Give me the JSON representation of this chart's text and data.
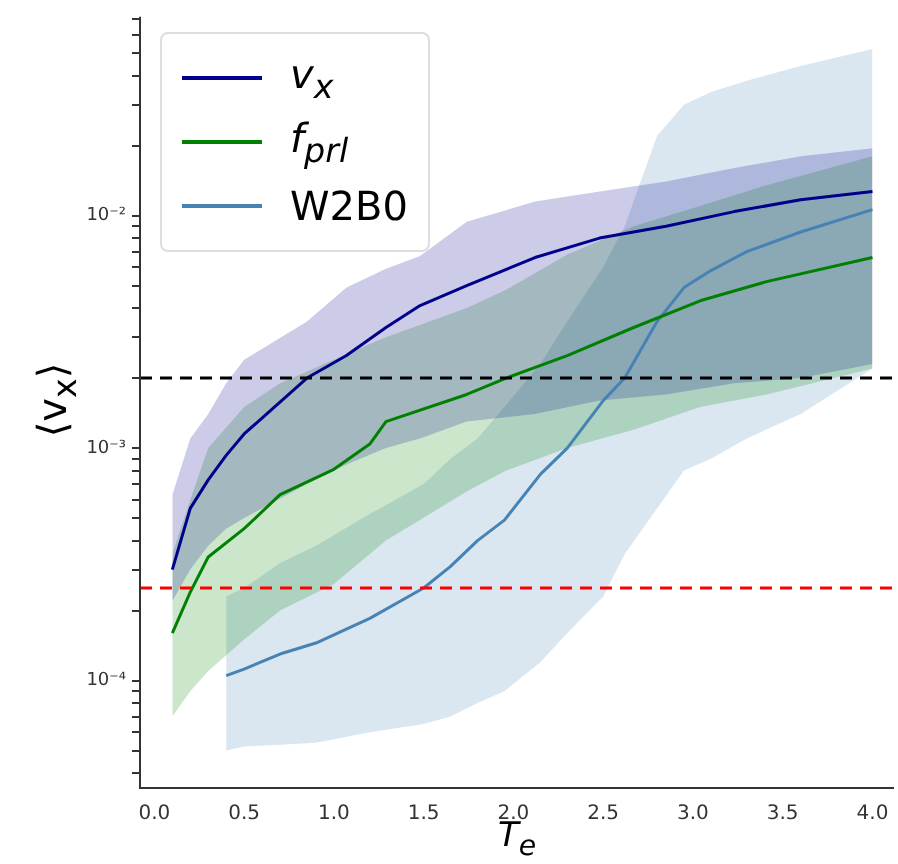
{
  "chart_data": {
    "type": "line",
    "xlabel": "T$_{e}$",
    "ylabel": "⟨v$_{x}$⟩",
    "log": "y",
    "legend": "top left",
    "xlim": [
      -0.08,
      4.12
    ],
    "ylim": [
      3.45e-05,
      0.0716
    ],
    "xticks": [
      {
        "value": 0,
        "label": "0.0"
      },
      {
        "value": 0.5,
        "label": "0.5"
      },
      {
        "value": 1,
        "label": "1.0"
      },
      {
        "value": 1.5,
        "label": "1.5"
      },
      {
        "value": 2,
        "label": "2.0"
      },
      {
        "value": 2.5,
        "label": "2.5"
      },
      {
        "value": 3,
        "label": "3.0"
      },
      {
        "value": 3.5,
        "label": "3.5"
      },
      {
        "value": 4,
        "label": "4.0"
      }
    ],
    "yticks": [
      {
        "value": 4e-05,
        "label": null
      },
      {
        "value": 5e-05,
        "label": null
      },
      {
        "value": 6e-05,
        "label": null
      },
      {
        "value": 7e-05,
        "label": null
      },
      {
        "value": 8e-05,
        "label": null
      },
      {
        "value": 9e-05,
        "label": null
      },
      {
        "value": 0.0001,
        "label": "10⁻⁴"
      },
      {
        "value": 0.0002,
        "label": null
      },
      {
        "value": 0.0003,
        "label": null
      },
      {
        "value": 0.0004,
        "label": null
      },
      {
        "value": 0.0005,
        "label": null
      },
      {
        "value": 0.0006,
        "label": null
      },
      {
        "value": 0.0007,
        "label": null
      },
      {
        "value": 0.0008,
        "label": null
      },
      {
        "value": 0.0009,
        "label": null
      },
      {
        "value": 0.001,
        "label": "10⁻³"
      },
      {
        "value": 0.002,
        "label": null
      },
      {
        "value": 0.003,
        "label": null
      },
      {
        "value": 0.004,
        "label": null
      },
      {
        "value": 0.005,
        "label": null
      },
      {
        "value": 0.006,
        "label": null
      },
      {
        "value": 0.007,
        "label": null
      },
      {
        "value": 0.008,
        "label": null
      },
      {
        "value": 0.009,
        "label": null
      },
      {
        "value": 0.01,
        "label": "10⁻²"
      },
      {
        "value": 0.02,
        "label": null
      },
      {
        "value": 0.03,
        "label": null
      },
      {
        "value": 0.04,
        "label": null
      },
      {
        "value": 0.05,
        "label": null
      },
      {
        "value": 0.06,
        "label": null
      },
      {
        "value": 0.07,
        "label": null
      }
    ],
    "ref_lines": [
      {
        "axis": "y",
        "value": 0.002,
        "label": null,
        "color": "#000000",
        "line_style": "dashed"
      },
      {
        "axis": "y",
        "value": 0.00025,
        "label": null,
        "color": "#ff0000",
        "line_style": "dashed"
      }
    ],
    "series": [
      {
        "name": "v$_{x}$",
        "color": "#00008b",
        "x": [
          0.1,
          0.2,
          0.3,
          0.4,
          0.5,
          0.85,
          1.07,
          1.29,
          1.48,
          1.74,
          2.12,
          2.48,
          2.85,
          3.23,
          3.6,
          4.0
        ],
        "values": [
          0.0003,
          0.00055,
          0.00073,
          0.00093,
          0.00115,
          0.002,
          0.0025,
          0.0033,
          0.0041,
          0.005,
          0.0066,
          0.008,
          0.009,
          0.0104,
          0.0117,
          0.0127
        ],
        "lower": [
          0.00022,
          0.0003,
          0.00038,
          0.00045,
          0.0005,
          0.0007,
          0.00085,
          0.001,
          0.0011,
          0.0013,
          0.0014,
          0.0016,
          0.0017,
          0.0019,
          0.002,
          0.0023
        ],
        "upper": [
          0.00063,
          0.0011,
          0.0014,
          0.0019,
          0.0024,
          0.0035,
          0.0049,
          0.0059,
          0.0067,
          0.0094,
          0.0115,
          0.0127,
          0.014,
          0.016,
          0.018,
          0.0195
        ]
      },
      {
        "name": "f$_{prl}$",
        "color": "#008000",
        "x": [
          0.1,
          0.2,
          0.3,
          0.5,
          0.7,
          1.0,
          1.2,
          1.29,
          1.74,
          1.96,
          2.3,
          2.67,
          3.04,
          3.41,
          4.0
        ],
        "values": [
          0.00016,
          0.00024,
          0.00034,
          0.00045,
          0.00063,
          0.00081,
          0.00104,
          0.0013,
          0.0017,
          0.002,
          0.0025,
          0.0033,
          0.0043,
          0.0052,
          0.0066
        ],
        "lower": [
          7e-05,
          9e-05,
          0.00011,
          0.00015,
          0.0002,
          0.00026,
          0.00035,
          0.0004,
          0.00065,
          0.0008,
          0.001,
          0.0012,
          0.0015,
          0.0017,
          0.0022
        ],
        "upper": [
          0.00035,
          0.0006,
          0.001,
          0.0015,
          0.0019,
          0.0024,
          0.0028,
          0.003,
          0.004,
          0.0048,
          0.0068,
          0.009,
          0.011,
          0.0135,
          0.018
        ]
      },
      {
        "name": "W2B0",
        "color": "#4682b4",
        "x": [
          0.4,
          0.5,
          0.7,
          0.9,
          1.2,
          1.5,
          1.65,
          1.8,
          1.95,
          2.15,
          2.3,
          2.5,
          2.62,
          2.8,
          2.95,
          3.1,
          3.3,
          3.6,
          4.0
        ],
        "values": [
          0.000105,
          0.000112,
          0.00013,
          0.000145,
          0.000185,
          0.00025,
          0.00031,
          0.0004,
          0.00049,
          0.00077,
          0.001,
          0.0016,
          0.002,
          0.0035,
          0.0049,
          0.0058,
          0.007,
          0.0085,
          0.0106
        ],
        "lower": [
          5e-05,
          5.2e-05,
          5.3e-05,
          5.4e-05,
          6e-05,
          6.5e-05,
          7e-05,
          8e-05,
          9e-05,
          0.00012,
          0.00016,
          0.00023,
          0.00035,
          0.00055,
          0.0008,
          0.0009,
          0.0011,
          0.0014,
          0.0022
        ],
        "upper": [
          0.00023,
          0.00025,
          0.00032,
          0.00038,
          0.00052,
          0.0007,
          0.0009,
          0.0011,
          0.0015,
          0.0023,
          0.0035,
          0.006,
          0.009,
          0.022,
          0.03,
          0.034,
          0.038,
          0.044,
          0.052
        ]
      }
    ]
  }
}
